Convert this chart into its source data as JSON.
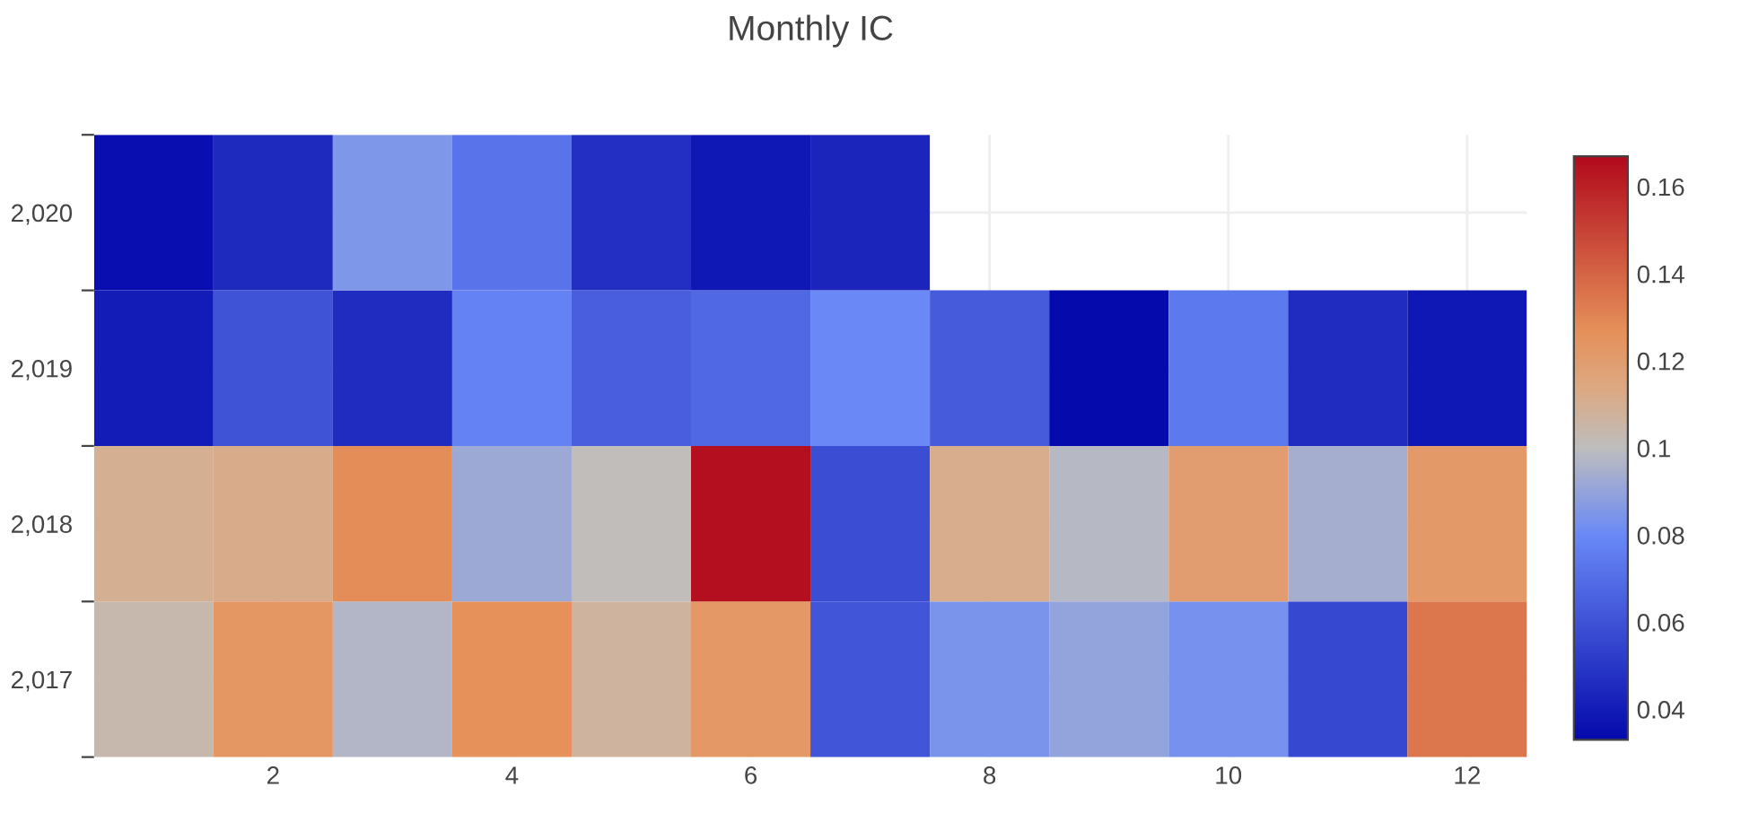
{
  "chart_data": {
    "type": "heatmap",
    "title": "Monthly IC",
    "x": [
      1,
      2,
      3,
      4,
      5,
      6,
      7,
      8,
      9,
      10,
      11,
      12
    ],
    "y": [
      2020,
      2019,
      2018,
      2017
    ],
    "cells": [
      [
        0.035,
        0.045,
        0.085,
        0.072,
        0.047,
        0.038,
        0.043,
        null,
        null,
        null,
        null,
        null
      ],
      [
        0.04,
        0.06,
        0.046,
        0.077,
        0.064,
        0.068,
        0.08,
        0.063,
        0.033,
        0.074,
        0.046,
        0.038
      ],
      [
        0.11,
        0.112,
        0.128,
        0.092,
        0.101,
        0.165,
        0.058,
        0.111,
        0.098,
        0.12,
        0.094,
        0.122
      ],
      [
        0.104,
        0.124,
        0.097,
        0.127,
        0.107,
        0.123,
        0.061,
        0.084,
        0.09,
        0.083,
        0.056,
        0.135
      ]
    ],
    "xlim": [
      0.5,
      12.5
    ],
    "xticks": [
      2,
      4,
      6,
      8,
      10,
      12
    ],
    "ylim": [
      2016.5,
      2020.5
    ],
    "yticks": [
      {
        "value": 2016.5,
        "label": null
      },
      {
        "value": 2017,
        "label": "2,017"
      },
      {
        "value": 2017.5,
        "label": null
      },
      {
        "value": 2018,
        "label": "2,018"
      },
      {
        "value": 2018.5,
        "label": null
      },
      {
        "value": 2019,
        "label": "2,019"
      },
      {
        "value": 2019.5,
        "label": null
      },
      {
        "value": 2020,
        "label": "2,020"
      },
      {
        "value": 2020.5,
        "label": null
      }
    ],
    "clim": [
      0.033,
      0.167
    ],
    "cticks": [
      0.04,
      0.06,
      0.08,
      0.1,
      0.12,
      0.14,
      0.16
    ],
    "grid": true
  }
}
